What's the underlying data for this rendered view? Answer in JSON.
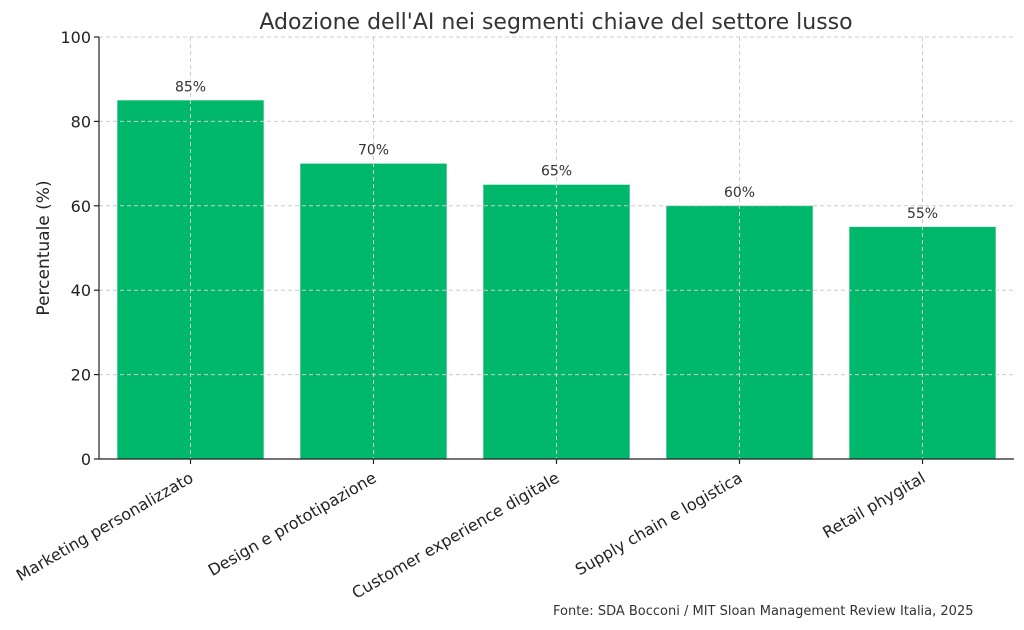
{
  "chart_data": {
    "type": "bar",
    "title": "Adozione dell'AI nei segmenti chiave del settore lusso",
    "xlabel": "",
    "ylabel": "Percentuale (%)",
    "categories": [
      "Marketing personalizzato",
      "Design e prototipazione",
      "Customer experience digitale",
      "Supply chain e logistica",
      "Retail phygital"
    ],
    "values": [
      85,
      70,
      65,
      60,
      55
    ],
    "data_labels": [
      "85%",
      "70%",
      "65%",
      "60%",
      "55%"
    ],
    "ylim": [
      0,
      100
    ],
    "yticks": [
      0,
      20,
      40,
      60,
      80,
      100
    ],
    "grid": true,
    "bar_color": "#00b86b"
  },
  "source": "Fonte: SDA Bocconi / MIT Sloan Management Review Italia, 2025"
}
